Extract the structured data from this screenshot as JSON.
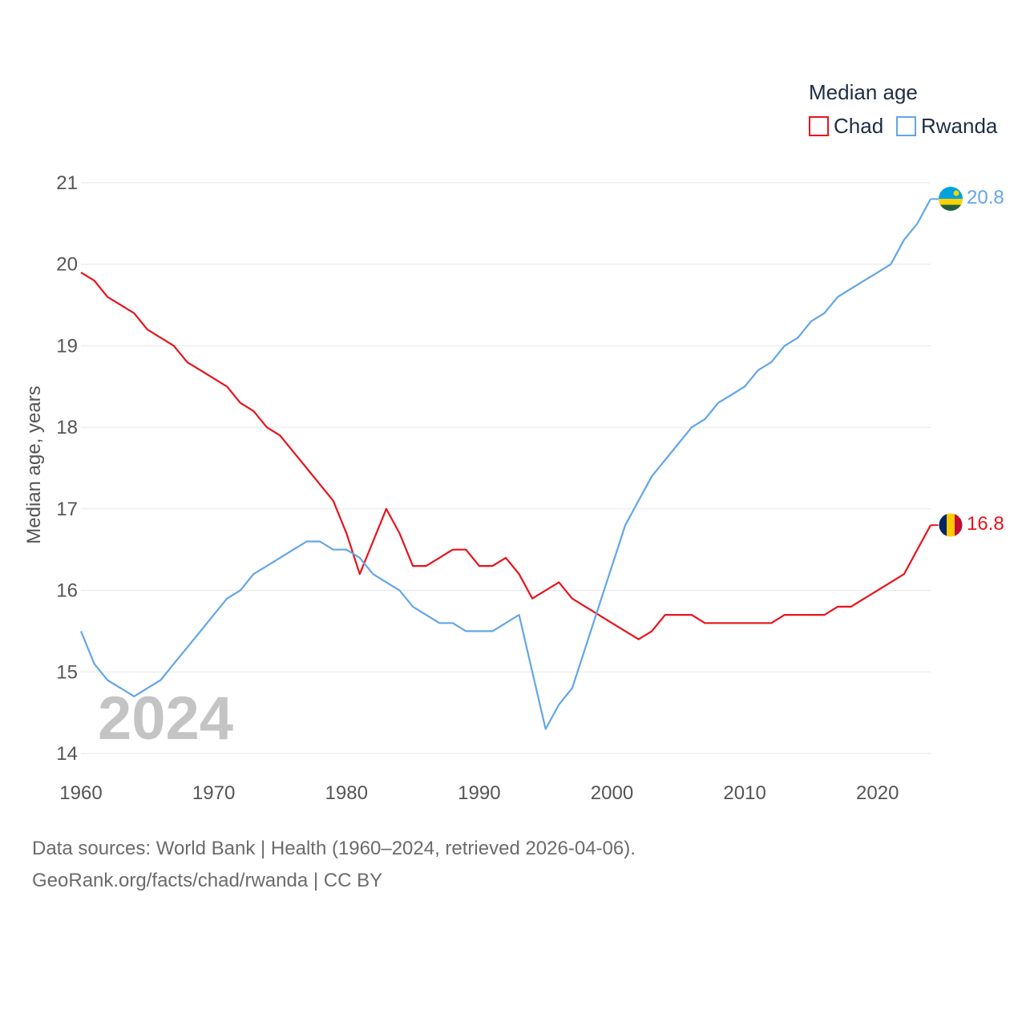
{
  "chart_data": {
    "type": "line",
    "legend_title": "Median age",
    "ylabel": "Median age, years",
    "xlabel": "",
    "xlim": [
      1960,
      2024
    ],
    "ylim": [
      14,
      21
    ],
    "x_ticks": [
      1960,
      1970,
      1980,
      1990,
      2000,
      2010,
      2020
    ],
    "y_ticks": [
      14,
      15,
      16,
      17,
      18,
      19,
      20,
      21
    ],
    "grid": true,
    "legend_position": "top-right",
    "watermark_year": "2024",
    "x": [
      1960,
      1961,
      1962,
      1963,
      1964,
      1965,
      1966,
      1967,
      1968,
      1969,
      1970,
      1971,
      1972,
      1973,
      1974,
      1975,
      1976,
      1977,
      1978,
      1979,
      1980,
      1981,
      1982,
      1983,
      1984,
      1985,
      1986,
      1987,
      1988,
      1989,
      1990,
      1991,
      1992,
      1993,
      1994,
      1995,
      1996,
      1997,
      1998,
      1999,
      2000,
      2001,
      2002,
      2003,
      2004,
      2005,
      2006,
      2007,
      2008,
      2009,
      2010,
      2011,
      2012,
      2013,
      2014,
      2015,
      2016,
      2017,
      2018,
      2019,
      2020,
      2021,
      2022,
      2023,
      2024
    ],
    "series": [
      {
        "name": "Chad",
        "color": "#e8131b",
        "end_label": "16.8",
        "values": [
          19.9,
          19.8,
          19.6,
          19.5,
          19.4,
          19.2,
          19.1,
          19.0,
          18.8,
          18.7,
          18.6,
          18.5,
          18.3,
          18.2,
          18.0,
          17.9,
          17.7,
          17.5,
          17.3,
          17.1,
          16.7,
          16.2,
          16.6,
          17.0,
          16.7,
          16.3,
          16.3,
          16.4,
          16.5,
          16.5,
          16.3,
          16.3,
          16.4,
          16.2,
          15.9,
          16.0,
          16.1,
          15.9,
          15.8,
          15.7,
          15.6,
          15.5,
          15.4,
          15.5,
          15.7,
          15.7,
          15.7,
          15.6,
          15.6,
          15.6,
          15.6,
          15.6,
          15.6,
          15.7,
          15.7,
          15.7,
          15.7,
          15.8,
          15.8,
          15.9,
          16.0,
          16.1,
          16.2,
          16.5,
          16.8
        ]
      },
      {
        "name": "Rwanda",
        "color": "#62a6e8",
        "end_label": "20.8",
        "values": [
          15.5,
          15.1,
          14.9,
          14.8,
          14.7,
          14.8,
          14.9,
          15.1,
          15.3,
          15.5,
          15.7,
          15.9,
          16.0,
          16.2,
          16.3,
          16.4,
          16.5,
          16.6,
          16.6,
          16.5,
          16.5,
          16.4,
          16.2,
          16.1,
          16.0,
          15.8,
          15.7,
          15.6,
          15.6,
          15.5,
          15.5,
          15.5,
          15.6,
          15.7,
          15.0,
          14.3,
          14.6,
          14.8,
          15.3,
          15.8,
          16.3,
          16.8,
          17.1,
          17.4,
          17.6,
          17.8,
          18.0,
          18.1,
          18.3,
          18.4,
          18.5,
          18.7,
          18.8,
          19.0,
          19.1,
          19.3,
          19.4,
          19.6,
          19.7,
          19.8,
          19.9,
          20.0,
          20.3,
          20.5,
          20.8
        ]
      }
    ]
  },
  "flags": {
    "chad": [
      "#002664",
      "#fecb00",
      "#c60c30"
    ],
    "rwanda": [
      "#00a1de",
      "#fad201",
      "#20603d"
    ]
  },
  "footer": {
    "line1": "Data sources: World Bank | Health (1960–2024, retrieved 2026-04-06).",
    "line2": "GeoRank.org/facts/chad/rwanda | CC BY"
  }
}
